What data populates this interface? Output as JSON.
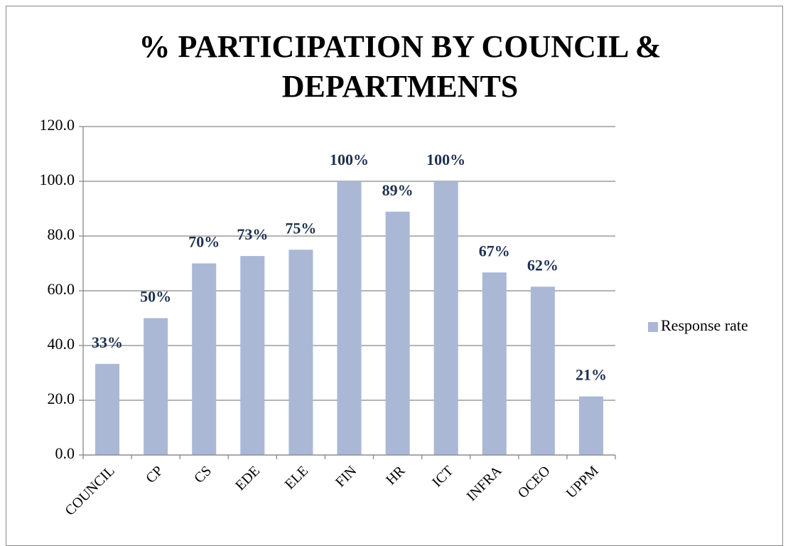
{
  "chart_data": {
    "type": "bar",
    "title": "% PARTICIPATION BY  COUNCIL & DEPARTMENTS",
    "categories": [
      "COUNCIL",
      "CP",
      "CS",
      "EDE",
      "ELE",
      "FIN",
      "HR",
      "ICT",
      "INFRA",
      "OCEO",
      "UPPM"
    ],
    "series": [
      {
        "name": "Response rate",
        "color": "#aab8d6",
        "values": [
          33.3,
          50,
          70,
          72.7,
          75,
          100,
          88.9,
          100,
          66.7,
          61.5,
          21.4
        ],
        "value_labels": [
          "33%",
          "50%",
          "70%",
          "73%",
          "75%",
          "100%",
          "89%",
          "100%",
          "67%",
          "62%",
          "21%"
        ]
      }
    ],
    "ylim": [
      0,
      120
    ],
    "yticks": [
      {
        "value": 0,
        "label": "0.0"
      },
      {
        "value": 20,
        "label": "20.0"
      },
      {
        "value": 40,
        "label": "40.0"
      },
      {
        "value": 60,
        "label": "60.0"
      },
      {
        "value": 80,
        "label": "80.0"
      },
      {
        "value": 100,
        "label": "100.0"
      },
      {
        "value": 120,
        "label": "120.0"
      }
    ],
    "grid": true,
    "legend": "right"
  }
}
